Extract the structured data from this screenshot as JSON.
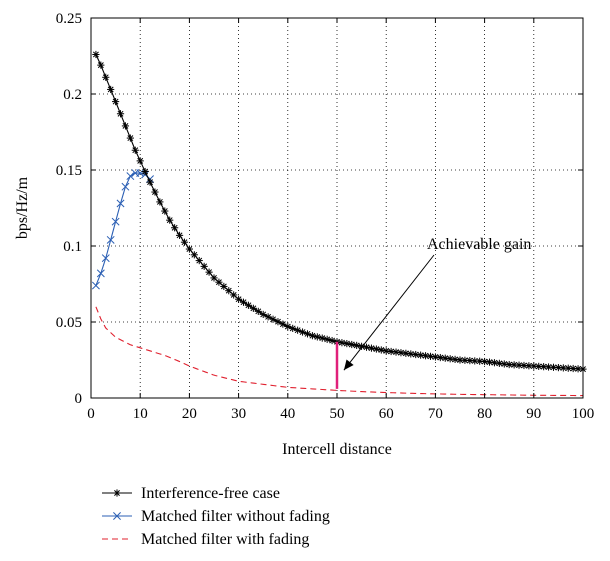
{
  "chart_data": {
    "type": "line",
    "title": "",
    "xlabel": "Intercell distance",
    "ylabel": "bps/Hz/m",
    "xlim": [
      0,
      100
    ],
    "ylim": [
      0,
      0.25
    ],
    "x_ticks": [
      0,
      10,
      20,
      30,
      40,
      50,
      60,
      70,
      80,
      90,
      100
    ],
    "y_ticks": [
      0,
      0.05,
      0.1,
      0.15,
      0.2,
      0.25
    ],
    "x_tick_labels": [
      "0",
      "10",
      "20",
      "30",
      "40",
      "50",
      "60",
      "70",
      "80",
      "90",
      "100"
    ],
    "y_tick_labels": [
      "0",
      "0.05",
      "0.1",
      "0.15",
      "0.2",
      "0.25"
    ],
    "grid": true,
    "legend_placement": "below",
    "series": [
      {
        "name": "Interference-free case",
        "color": "#000000",
        "marker": "asterisk",
        "line": "solid",
        "x": [
          1,
          2,
          3,
          4,
          5,
          6,
          7,
          8,
          9,
          10,
          12,
          14,
          16,
          18,
          20,
          25,
          30,
          35,
          40,
          45,
          50,
          55,
          60,
          65,
          70,
          75,
          80,
          85,
          90,
          95,
          100
        ],
        "y": [
          0.226,
          0.219,
          0.211,
          0.203,
          0.195,
          0.187,
          0.179,
          0.171,
          0.163,
          0.156,
          0.142,
          0.129,
          0.117,
          0.107,
          0.098,
          0.079,
          0.065,
          0.055,
          0.047,
          0.041,
          0.037,
          0.034,
          0.031,
          0.029,
          0.027,
          0.025,
          0.024,
          0.022,
          0.021,
          0.02,
          0.019
        ]
      },
      {
        "name": "Matched filter without fading",
        "color": "#2b5fb4",
        "marker": "x",
        "line": "solid",
        "x": [
          1,
          2,
          3,
          4,
          5,
          6,
          7,
          8,
          9,
          10,
          11,
          12
        ],
        "y": [
          0.074,
          0.082,
          0.092,
          0.104,
          0.116,
          0.128,
          0.139,
          0.146,
          0.148,
          0.148,
          0.147,
          0.144
        ]
      },
      {
        "name": "Matched filter with fading",
        "color": "#e0202e",
        "marker": "none",
        "line": "dashed",
        "x": [
          1,
          2,
          3,
          5,
          8,
          10,
          12,
          15,
          18,
          20,
          25,
          30,
          35,
          40,
          45,
          50,
          55,
          60,
          65,
          70,
          75,
          80,
          85,
          90,
          95,
          100
        ],
        "y": [
          0.06,
          0.052,
          0.046,
          0.04,
          0.035,
          0.033,
          0.031,
          0.028,
          0.024,
          0.021,
          0.015,
          0.011,
          0.009,
          0.007,
          0.006,
          0.005,
          0.0042,
          0.0036,
          0.0031,
          0.0027,
          0.0024,
          0.0022,
          0.002,
          0.0018,
          0.0017,
          0.0016
        ]
      }
    ],
    "annotations": [
      {
        "text": "Achievable gain",
        "gain_bar": {
          "x": 50,
          "y_low": 0.006,
          "y_high": 0.037,
          "color": "#e0207a"
        },
        "arrow_tip": {
          "x": 51,
          "y": 0.017
        }
      }
    ]
  }
}
